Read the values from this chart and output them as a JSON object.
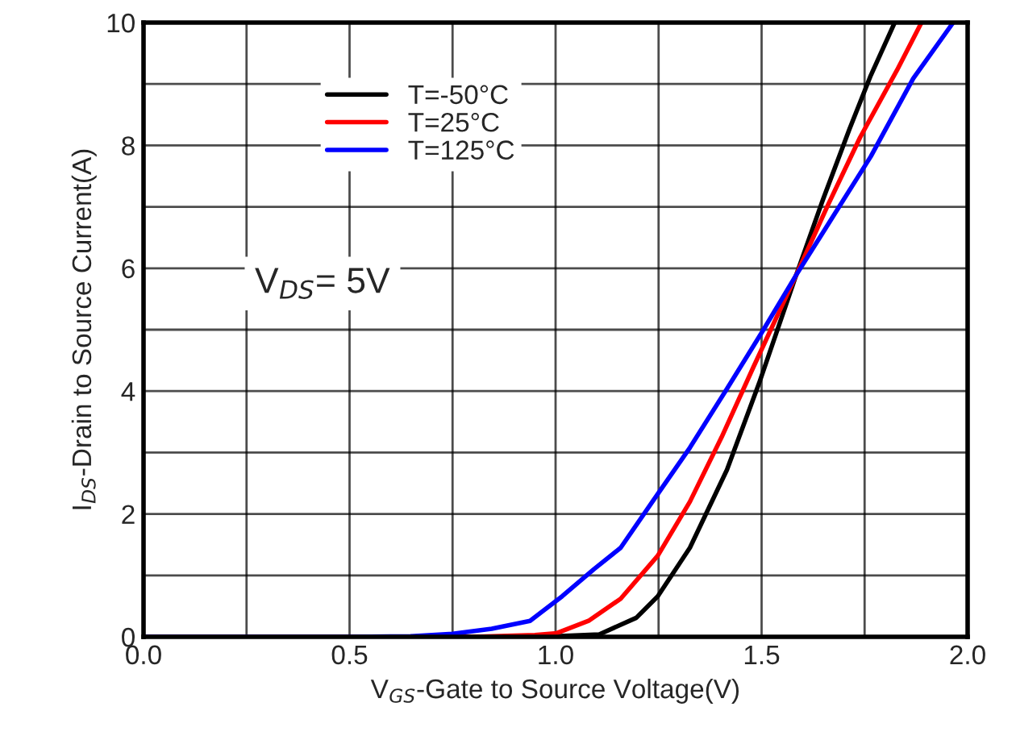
{
  "chart_data": {
    "type": "line",
    "xlabel": "V$_{GS}$-Gate to Source Voltage(V)",
    "ylabel": "I$_{DS}$-Drain to Source Current(A)",
    "annotations": [
      "V$_{DS}$= 5V"
    ],
    "series": [
      {
        "name": "T=-50°C",
        "color": "#000000",
        "x": [
          0.0,
          0.5,
          0.9,
          1.0,
          1.106,
          1.196,
          1.248,
          1.326,
          1.416,
          1.494,
          1.584,
          1.649,
          1.713,
          1.765,
          1.823
        ],
        "values": [
          0,
          0,
          0,
          0.01,
          0.04,
          0.31,
          0.66,
          1.45,
          2.72,
          4.13,
          5.89,
          7.12,
          8.26,
          9.14,
          10
        ]
      },
      {
        "name": "T=25°C",
        "color": "#ff0000",
        "x": [
          0.0,
          0.5,
          0.8,
          0.95,
          1.003,
          1.08,
          1.158,
          1.248,
          1.326,
          1.403,
          1.48,
          1.584,
          1.661,
          1.739,
          1.829,
          1.888
        ],
        "values": [
          0,
          0,
          0,
          0.03,
          0.06,
          0.26,
          0.62,
          1.32,
          2.2,
          3.25,
          4.39,
          5.89,
          7.03,
          8.13,
          9.23,
          10
        ]
      },
      {
        "name": "T=125°C",
        "color": "#0000ff",
        "x": [
          0.0,
          0.5,
          0.65,
          0.75,
          0.845,
          0.938,
          1.016,
          1.093,
          1.158,
          1.235,
          1.326,
          1.416,
          1.501,
          1.584,
          1.674,
          1.765,
          1.868,
          1.965
        ],
        "values": [
          0,
          0,
          0.01,
          0.05,
          0.13,
          0.26,
          0.66,
          1.1,
          1.45,
          2.2,
          3.08,
          4.04,
          4.96,
          5.89,
          6.85,
          7.82,
          9.09,
          10
        ]
      }
    ],
    "xlim": [
      0.0,
      2.0
    ],
    "xticks": [
      {
        "value": 0.0,
        "label": "0.0"
      },
      {
        "value": 0.25,
        "label": null
      },
      {
        "value": 0.5,
        "label": "0.5"
      },
      {
        "value": 0.75,
        "label": null
      },
      {
        "value": 1.0,
        "label": "1.0"
      },
      {
        "value": 1.25,
        "label": null
      },
      {
        "value": 1.5,
        "label": "1.5"
      },
      {
        "value": 1.75,
        "label": null
      },
      {
        "value": 2.0,
        "label": "2.0"
      }
    ],
    "ylim": [
      0,
      10
    ],
    "yticks": [
      0,
      {
        "value": 1,
        "label": null
      },
      2,
      {
        "value": 3,
        "label": null
      },
      4,
      {
        "value": 5,
        "label": null
      },
      6,
      {
        "value": 7,
        "label": null
      },
      8,
      {
        "value": 9,
        "label": null
      },
      10
    ],
    "grid": true,
    "legend": "top left",
    "marker": "none",
    "line_style": "solid"
  }
}
